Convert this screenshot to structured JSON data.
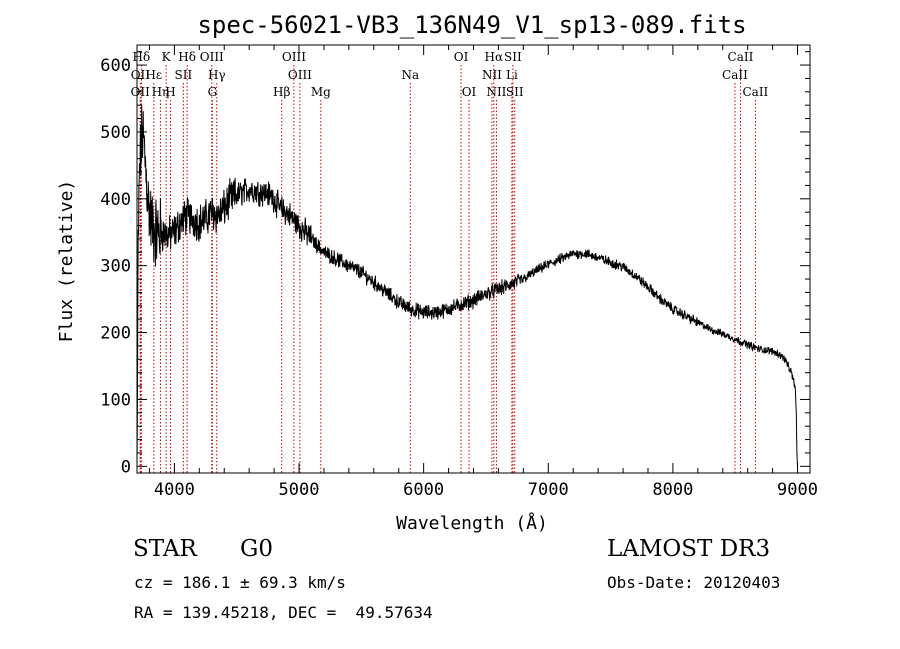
{
  "chart_data": {
    "type": "line",
    "title": "spec-56021-VB3_136N49_V1_sp13-089.fits",
    "xlabel": "Wavelength (Å)",
    "ylabel": "Flux (relative)",
    "xlim": [
      3700,
      9100
    ],
    "ylim": [
      -10,
      630
    ],
    "x_ticks": [
      4000,
      5000,
      6000,
      7000,
      8000,
      9000
    ],
    "y_ticks": [
      0,
      100,
      200,
      300,
      400,
      500,
      600
    ],
    "grid": false,
    "line_color": "#000000",
    "marker_color": "#cc0000",
    "series": [
      {
        "name": "flux",
        "anchors": [
          [
            3700,
            0
          ],
          [
            3702,
            40
          ],
          [
            3705,
            150
          ],
          [
            3710,
            330
          ],
          [
            3720,
            440
          ],
          [
            3730,
            470
          ],
          [
            3745,
            500
          ],
          [
            3760,
            470
          ],
          [
            3780,
            420
          ],
          [
            3800,
            380
          ],
          [
            3820,
            360
          ],
          [
            3850,
            350
          ],
          [
            3900,
            350
          ],
          [
            3950,
            345
          ],
          [
            4000,
            350
          ],
          [
            4050,
            365
          ],
          [
            4100,
            375
          ],
          [
            4150,
            370
          ],
          [
            4200,
            365
          ],
          [
            4250,
            370
          ],
          [
            4300,
            380
          ],
          [
            4350,
            375
          ],
          [
            4400,
            385
          ],
          [
            4450,
            400
          ],
          [
            4500,
            405
          ],
          [
            4550,
            410
          ],
          [
            4600,
            415
          ],
          [
            4650,
            412
          ],
          [
            4700,
            410
          ],
          [
            4750,
            408
          ],
          [
            4800,
            400
          ],
          [
            4850,
            385
          ],
          [
            4900,
            380
          ],
          [
            4950,
            370
          ],
          [
            5000,
            360
          ],
          [
            5050,
            350
          ],
          [
            5100,
            340
          ],
          [
            5150,
            330
          ],
          [
            5200,
            320
          ],
          [
            5300,
            310
          ],
          [
            5400,
            300
          ],
          [
            5500,
            290
          ],
          [
            5600,
            275
          ],
          [
            5700,
            260
          ],
          [
            5800,
            245
          ],
          [
            5900,
            235
          ],
          [
            6000,
            230
          ],
          [
            6100,
            230
          ],
          [
            6200,
            235
          ],
          [
            6300,
            242
          ],
          [
            6400,
            248
          ],
          [
            6500,
            258
          ],
          [
            6600,
            265
          ],
          [
            6700,
            272
          ],
          [
            6800,
            280
          ],
          [
            6900,
            292
          ],
          [
            7000,
            302
          ],
          [
            7100,
            310
          ],
          [
            7200,
            318
          ],
          [
            7300,
            318
          ],
          [
            7400,
            312
          ],
          [
            7500,
            305
          ],
          [
            7600,
            298
          ],
          [
            7700,
            285
          ],
          [
            7800,
            268
          ],
          [
            7900,
            250
          ],
          [
            8000,
            235
          ],
          [
            8100,
            225
          ],
          [
            8200,
            215
          ],
          [
            8300,
            205
          ],
          [
            8400,
            198
          ],
          [
            8500,
            190
          ],
          [
            8600,
            182
          ],
          [
            8700,
            175
          ],
          [
            8800,
            172
          ],
          [
            8850,
            168
          ],
          [
            8900,
            160
          ],
          [
            8950,
            140
          ],
          [
            8980,
            120
          ],
          [
            8990,
            80
          ],
          [
            8995,
            20
          ],
          [
            9000,
            0
          ]
        ],
        "noise": [
          [
            3700,
            3900,
            90
          ],
          [
            3900,
            4500,
            45
          ],
          [
            4500,
            5100,
            32
          ],
          [
            5100,
            6800,
            18
          ],
          [
            6800,
            8200,
            12
          ],
          [
            8200,
            9000,
            9
          ]
        ]
      }
    ],
    "line_markers": [
      {
        "label": "Hδ",
        "x": 3735,
        "row": 1
      },
      {
        "label": "OII",
        "x": 3727,
        "row": 2
      },
      {
        "label": "OII",
        "x": 3726,
        "row": 3
      },
      {
        "label": "Hε",
        "x": 3835,
        "row": 2
      },
      {
        "label": "Hη",
        "x": 3888,
        "row": 3
      },
      {
        "label": "K",
        "x": 3934,
        "row": 1
      },
      {
        "label": "H",
        "x": 3969,
        "row": 3
      },
      {
        "label": "SII",
        "x": 4072,
        "row": 2
      },
      {
        "label": "Hδ",
        "x": 4102,
        "row": 1
      },
      {
        "label": "OIII",
        "x": 4300,
        "row": 1
      },
      {
        "label": "Hγ",
        "x": 4340,
        "row": 2
      },
      {
        "label": "G",
        "x": 4305,
        "row": 3
      },
      {
        "label": "Hβ",
        "x": 4861,
        "row": 3
      },
      {
        "label": "OIII",
        "x": 4959,
        "row": 1
      },
      {
        "label": "OIII",
        "x": 5007,
        "row": 2
      },
      {
        "label": "Mg",
        "x": 5175,
        "row": 3
      },
      {
        "label": "Na",
        "x": 5893,
        "row": 2
      },
      {
        "label": "OI",
        "x": 6300,
        "row": 1
      },
      {
        "label": "OI",
        "x": 6364,
        "row": 3
      },
      {
        "label": "Hα",
        "x": 6563,
        "row": 1
      },
      {
        "label": "NII",
        "x": 6548,
        "row": 2
      },
      {
        "label": "NII",
        "x": 6584,
        "row": 3
      },
      {
        "label": "SII",
        "x": 6716,
        "row": 1
      },
      {
        "label": "Li",
        "x": 6708,
        "row": 2
      },
      {
        "label": "SII",
        "x": 6731,
        "row": 3
      },
      {
        "label": "CaII",
        "x": 8542,
        "row": 1
      },
      {
        "label": "CaII",
        "x": 8498,
        "row": 2
      },
      {
        "label": "CaII",
        "x": 8662,
        "row": 3
      }
    ]
  },
  "info": {
    "class_label": "STAR",
    "subclass_label": "G0",
    "survey_label": "LAMOST DR3",
    "redshift_text": "cz = 186.1 ± 69.3 km/s",
    "obs_date_text": "Obs-Date: 20120403",
    "coords_text": "RA = 139.45218, DEC =  49.57634"
  }
}
